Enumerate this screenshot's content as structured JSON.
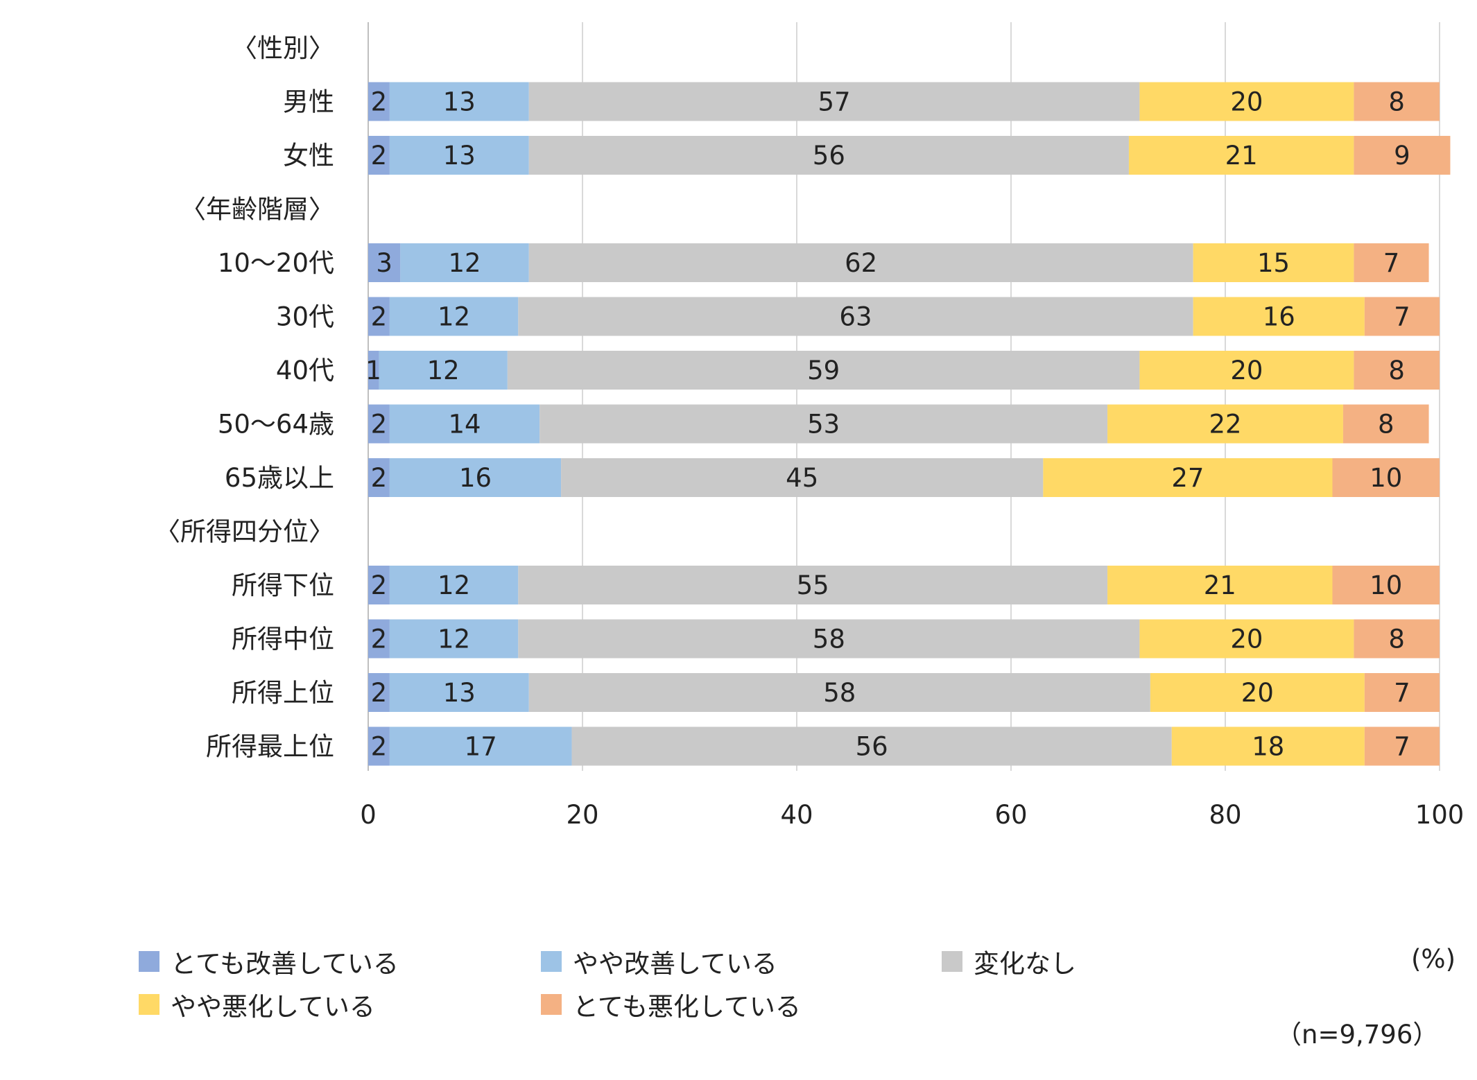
{
  "chart_data": {
    "type": "bar",
    "orientation": "horizontal",
    "stacked": true,
    "xlim": [
      0,
      100
    ],
    "x_ticks": [
      "0",
      "20",
      "40",
      "60",
      "80",
      "100"
    ],
    "grid": true,
    "unit": "(%)",
    "note": "（n=9,796）",
    "rows": [
      {
        "kind": "header",
        "label": "〈性別〉"
      },
      {
        "kind": "bar",
        "label": "男性",
        "values": [
          2,
          13,
          57,
          20,
          8
        ]
      },
      {
        "kind": "bar",
        "label": "女性",
        "values": [
          2,
          13,
          56,
          21,
          9
        ]
      },
      {
        "kind": "header",
        "label": "〈年齢階層〉"
      },
      {
        "kind": "bar",
        "label": "10～20代",
        "values": [
          3,
          12,
          62,
          15,
          7
        ]
      },
      {
        "kind": "bar",
        "label": "30代",
        "values": [
          2,
          12,
          63,
          16,
          7
        ]
      },
      {
        "kind": "bar",
        "label": "40代",
        "values": [
          1,
          12,
          59,
          20,
          8
        ]
      },
      {
        "kind": "bar",
        "label": "50～64歳",
        "values": [
          2,
          14,
          53,
          22,
          8
        ]
      },
      {
        "kind": "bar",
        "label": "65歳以上",
        "values": [
          2,
          16,
          45,
          27,
          10
        ]
      },
      {
        "kind": "header",
        "label": "〈所得四分位〉"
      },
      {
        "kind": "bar",
        "label": "所得下位",
        "values": [
          2,
          12,
          55,
          21,
          10
        ]
      },
      {
        "kind": "bar",
        "label": "所得中位",
        "values": [
          2,
          12,
          58,
          20,
          8
        ]
      },
      {
        "kind": "bar",
        "label": "所得上位",
        "values": [
          2,
          13,
          58,
          20,
          7
        ]
      },
      {
        "kind": "bar",
        "label": "所得最上位",
        "values": [
          2,
          17,
          56,
          18,
          7
        ]
      }
    ],
    "series": [
      {
        "name": "とても改善している",
        "color": "#8faadc"
      },
      {
        "name": "やや改善している",
        "color": "#9dc3e6"
      },
      {
        "name": "変化なし",
        "color": "#c9c9c9"
      },
      {
        "name": "やや悪化している",
        "color": "#ffd966"
      },
      {
        "name": "とても悪化している",
        "color": "#f4b183"
      }
    ],
    "legend_position": "bottom"
  }
}
